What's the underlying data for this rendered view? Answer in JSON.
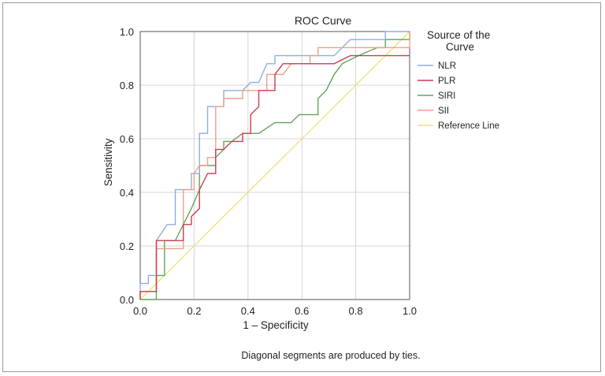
{
  "chart_data": {
    "type": "line",
    "title": "ROC Curve",
    "xlabel": "1 – Specificity",
    "ylabel": "Sensitivity",
    "xlim": [
      0,
      1
    ],
    "ylim": [
      0,
      1
    ],
    "xticks": [
      "0.0",
      "0.2",
      "0.4",
      "0.6",
      "0.8",
      "1.0"
    ],
    "yticks": [
      "0.0",
      "0.2",
      "0.4",
      "0.6",
      "0.8",
      "1.0"
    ],
    "grid": true,
    "legend_title": "Source of the Curve",
    "legend_position": "right",
    "note": "Diagonal segments are produced by ties.",
    "series": [
      {
        "name": "NLR",
        "color": "#8eaee0",
        "points": [
          [
            0,
            0
          ],
          [
            0,
            0.06
          ],
          [
            0.03,
            0.06
          ],
          [
            0.03,
            0.09
          ],
          [
            0.06,
            0.09
          ],
          [
            0.06,
            0.22
          ],
          [
            0.1,
            0.28
          ],
          [
            0.13,
            0.28
          ],
          [
            0.13,
            0.41
          ],
          [
            0.19,
            0.41
          ],
          [
            0.19,
            0.47
          ],
          [
            0.22,
            0.47
          ],
          [
            0.22,
            0.62
          ],
          [
            0.25,
            0.62
          ],
          [
            0.25,
            0.72
          ],
          [
            0.31,
            0.72
          ],
          [
            0.31,
            0.78
          ],
          [
            0.38,
            0.78
          ],
          [
            0.41,
            0.81
          ],
          [
            0.44,
            0.81
          ],
          [
            0.47,
            0.88
          ],
          [
            0.5,
            0.88
          ],
          [
            0.5,
            0.91
          ],
          [
            0.72,
            0.91
          ],
          [
            0.75,
            0.94
          ],
          [
            0.78,
            0.97
          ],
          [
            0.91,
            0.97
          ],
          [
            0.91,
            1.0
          ],
          [
            1.0,
            1.0
          ]
        ]
      },
      {
        "name": "PLR",
        "color": "#d23a52",
        "points": [
          [
            0,
            0
          ],
          [
            0,
            0.03
          ],
          [
            0.06,
            0.03
          ],
          [
            0.06,
            0.22
          ],
          [
            0.16,
            0.22
          ],
          [
            0.16,
            0.28
          ],
          [
            0.19,
            0.28
          ],
          [
            0.19,
            0.31
          ],
          [
            0.22,
            0.34
          ],
          [
            0.22,
            0.41
          ],
          [
            0.25,
            0.47
          ],
          [
            0.28,
            0.47
          ],
          [
            0.28,
            0.56
          ],
          [
            0.31,
            0.56
          ],
          [
            0.34,
            0.59
          ],
          [
            0.38,
            0.59
          ],
          [
            0.38,
            0.62
          ],
          [
            0.41,
            0.62
          ],
          [
            0.41,
            0.69
          ],
          [
            0.44,
            0.72
          ],
          [
            0.44,
            0.78
          ],
          [
            0.5,
            0.78
          ],
          [
            0.5,
            0.84
          ],
          [
            0.53,
            0.88
          ],
          [
            0.72,
            0.88
          ],
          [
            0.78,
            0.91
          ],
          [
            1.0,
            0.91
          ]
        ]
      },
      {
        "name": "SIRI",
        "color": "#5fa55a",
        "points": [
          [
            0,
            0
          ],
          [
            0.06,
            0
          ],
          [
            0.06,
            0.09
          ],
          [
            0.09,
            0.09
          ],
          [
            0.09,
            0.22
          ],
          [
            0.13,
            0.22
          ],
          [
            0.13,
            0.22
          ],
          [
            0.16,
            0.28
          ],
          [
            0.19,
            0.34
          ],
          [
            0.22,
            0.41
          ],
          [
            0.22,
            0.5
          ],
          [
            0.28,
            0.5
          ],
          [
            0.28,
            0.53
          ],
          [
            0.31,
            0.56
          ],
          [
            0.31,
            0.59
          ],
          [
            0.34,
            0.59
          ],
          [
            0.38,
            0.62
          ],
          [
            0.44,
            0.62
          ],
          [
            0.5,
            0.66
          ],
          [
            0.56,
            0.66
          ],
          [
            0.59,
            0.69
          ],
          [
            0.66,
            0.69
          ],
          [
            0.66,
            0.75
          ],
          [
            0.69,
            0.78
          ],
          [
            0.72,
            0.84
          ],
          [
            0.75,
            0.88
          ],
          [
            0.81,
            0.91
          ],
          [
            0.88,
            0.94
          ],
          [
            0.91,
            0.94
          ],
          [
            0.91,
            0.97
          ],
          [
            1.0,
            0.97
          ],
          [
            1.0,
            1.0
          ]
        ]
      },
      {
        "name": "SII",
        "color": "#f0a08a",
        "points": [
          [
            0,
            0
          ],
          [
            0,
            0.03
          ],
          [
            0.06,
            0.03
          ],
          [
            0.06,
            0.19
          ],
          [
            0.16,
            0.19
          ],
          [
            0.16,
            0.41
          ],
          [
            0.2,
            0.41
          ],
          [
            0.2,
            0.47
          ],
          [
            0.22,
            0.5
          ],
          [
            0.25,
            0.5
          ],
          [
            0.25,
            0.53
          ],
          [
            0.28,
            0.53
          ],
          [
            0.28,
            0.72
          ],
          [
            0.31,
            0.72
          ],
          [
            0.31,
            0.75
          ],
          [
            0.38,
            0.75
          ],
          [
            0.38,
            0.78
          ],
          [
            0.47,
            0.78
          ],
          [
            0.47,
            0.84
          ],
          [
            0.53,
            0.84
          ],
          [
            0.56,
            0.88
          ],
          [
            0.63,
            0.88
          ],
          [
            0.63,
            0.91
          ],
          [
            0.66,
            0.91
          ],
          [
            0.66,
            0.94
          ],
          [
            1.0,
            0.94
          ],
          [
            1.0,
            1.0
          ]
        ]
      },
      {
        "name": "Reference Line",
        "color": "#f2e27c",
        "points": [
          [
            0,
            0
          ],
          [
            1,
            1
          ]
        ]
      }
    ]
  }
}
